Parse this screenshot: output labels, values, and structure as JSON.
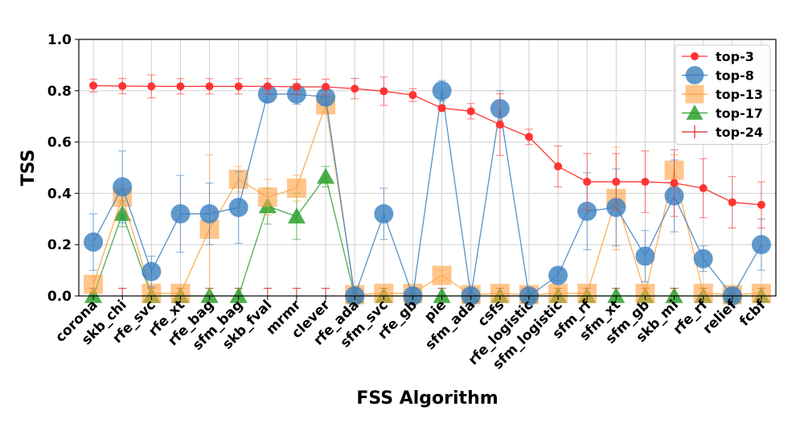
{
  "chart_data": {
    "type": "line",
    "xlabel": "FSS Algorithm",
    "ylabel": "TSS",
    "ylim": [
      0.0,
      1.0
    ],
    "yticks": [
      "0.0",
      "0.2",
      "0.4",
      "0.6",
      "0.8",
      "1.0"
    ],
    "grid": true,
    "legend_position": "top-right",
    "categories": [
      "corona",
      "skb_chi",
      "rfe_svc",
      "rfe_xt",
      "rfe_bag",
      "sfm_bag",
      "skb_fval",
      "mrmr",
      "clever",
      "rfe_ada",
      "sfm_svc",
      "rfe_gb",
      "pie",
      "sfm_ada",
      "csfs",
      "rfe_logistic",
      "sfm_logistic",
      "sfm_rf",
      "sfm_xt",
      "sfm_gb",
      "skb_mi",
      "rfe_rf",
      "relief",
      "fcbf"
    ],
    "series": [
      {
        "name": "top-3",
        "color": "#ff3333",
        "marker": "circle-small",
        "values": [
          0.82,
          0.818,
          0.817,
          0.817,
          0.817,
          0.817,
          0.817,
          0.815,
          0.815,
          0.808,
          0.798,
          0.783,
          0.732,
          0.72,
          0.668,
          0.62,
          0.505,
          0.445,
          0.445,
          0.445,
          0.44,
          0.42,
          0.365,
          0.355
        ],
        "errors": [
          0.025,
          0.03,
          0.045,
          0.03,
          0.03,
          0.03,
          0.03,
          0.03,
          0.03,
          0.04,
          0.055,
          0.025,
          0.01,
          0.03,
          0.12,
          0.03,
          0.08,
          0.11,
          0.11,
          0.12,
          0.13,
          0.115,
          0.1,
          0.09
        ]
      },
      {
        "name": "top-8",
        "color": "#3a7fc1",
        "marker": "circle-large",
        "values": [
          0.21,
          0.425,
          0.095,
          0.32,
          0.32,
          0.345,
          0.787,
          0.787,
          0.775,
          0.0,
          0.32,
          0.0,
          0.8,
          0.0,
          0.73,
          0.0,
          0.08,
          0.33,
          0.345,
          0.155,
          0.39,
          0.145,
          0.0,
          0.2
        ],
        "errors": [
          0.11,
          0.14,
          0.06,
          0.15,
          0.12,
          0.14,
          0.03,
          0.04,
          0.03,
          0.0,
          0.1,
          0.0,
          0.04,
          0.0,
          0.07,
          0.0,
          0.02,
          0.15,
          0.15,
          0.1,
          0.14,
          0.05,
          0.0,
          0.1
        ]
      },
      {
        "name": "top-13",
        "color": "#ffa040",
        "marker": "square",
        "values": [
          0.045,
          0.385,
          0.01,
          0.01,
          0.26,
          0.455,
          0.385,
          0.42,
          0.745,
          0.005,
          0.01,
          0.01,
          0.08,
          0.005,
          0.01,
          0.005,
          0.01,
          0.01,
          0.38,
          0.01,
          0.49,
          0.01,
          0.005,
          0.01
        ],
        "errors": [
          0.03,
          0.05,
          0.0,
          0.0,
          0.29,
          0.05,
          0.07,
          0.05,
          0.03,
          0.0,
          0.0,
          0.0,
          0.02,
          0.0,
          0.0,
          0.0,
          0.0,
          0.0,
          0.2,
          0.0,
          0.06,
          0.0,
          0.0,
          0.0
        ]
      },
      {
        "name": "top-17",
        "color": "#2ca02c",
        "marker": "triangle",
        "values": [
          0.0,
          0.32,
          0.0,
          0.0,
          0.0,
          0.0,
          0.35,
          0.31,
          0.465,
          0.0,
          0.0,
          0.0,
          0.0,
          0.0,
          0.0,
          0.0,
          0.0,
          0.0,
          0.0,
          0.0,
          0.0,
          0.0,
          0.0,
          0.0
        ],
        "errors": [
          0.0,
          0.05,
          0.0,
          0.0,
          0.0,
          0.0,
          0.07,
          0.09,
          0.04,
          0.0,
          0.0,
          0.0,
          0.0,
          0.0,
          0.0,
          0.0,
          0.0,
          0.0,
          0.0,
          0.0,
          0.0,
          0.0,
          0.0,
          0.0
        ]
      },
      {
        "name": "top-24",
        "color": "#d62728",
        "marker": "none",
        "values": [
          0.0,
          0.0,
          0.0,
          0.0,
          0.0,
          0.0,
          0.0,
          0.0,
          0.0,
          0.0,
          0.0,
          0.0,
          0.0,
          0.0,
          0.0,
          0.0,
          0.0,
          0.0,
          0.0,
          0.0,
          0.0,
          0.0,
          0.0,
          0.0
        ],
        "errors": [
          0.03,
          0.03,
          0.03,
          0.03,
          0.03,
          0.03,
          0.03,
          0.03,
          0.03,
          0.03,
          0.03,
          0.03,
          0.03,
          0.03,
          0.03,
          0.03,
          0.03,
          0.03,
          0.03,
          0.03,
          0.03,
          0.03,
          0.03,
          0.03
        ]
      }
    ]
  }
}
